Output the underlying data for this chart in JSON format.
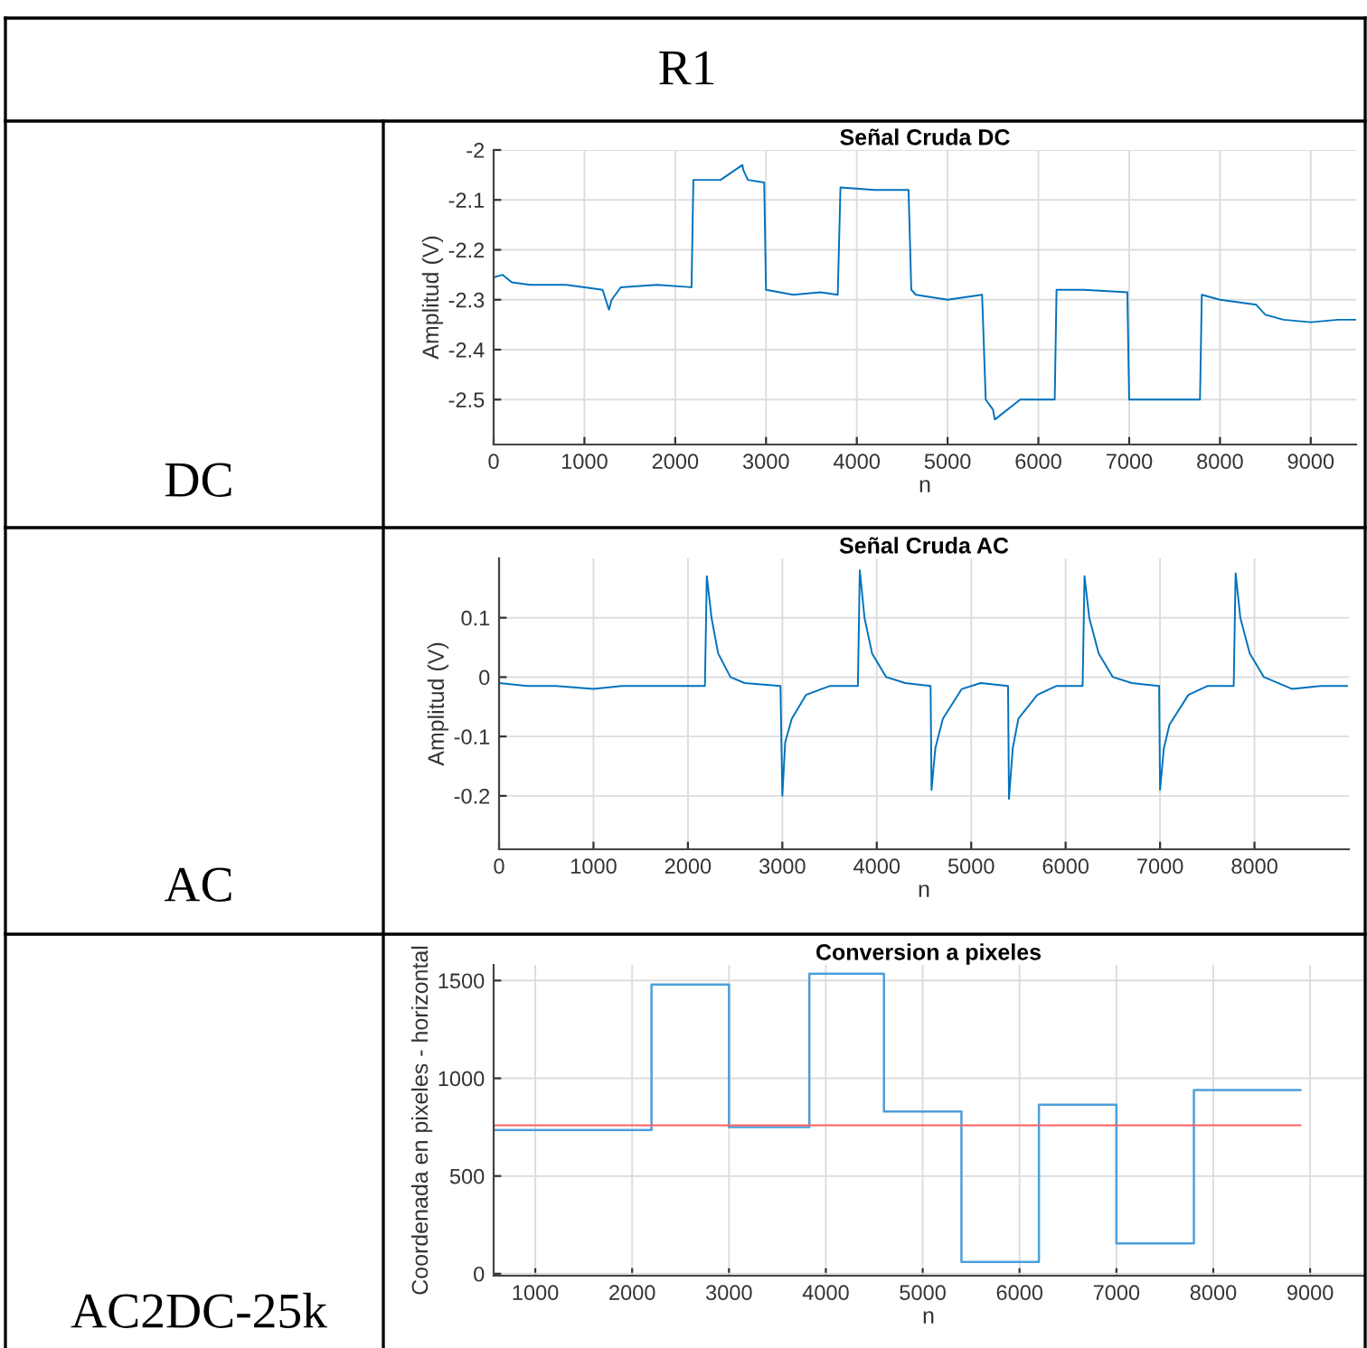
{
  "chart_data": [
    {
      "type": "other",
      "title": "R1",
      "annotations": [
        "DC",
        "AC",
        "AC2DC-25k"
      ]
    },
    {
      "type": "line",
      "title": "Señal Cruda DC",
      "xlabel": "n",
      "ylabel": "Amplitud (V)",
      "grid": true,
      "xlim": [
        0,
        9500
      ],
      "xticks": [
        0,
        1000,
        2000,
        3000,
        4000,
        5000,
        6000,
        7000,
        8000,
        9000
      ],
      "ylim": [
        -2.59,
        -2
      ],
      "yticks": [
        -2.5,
        -2.4,
        -2.3,
        -2.2,
        -2.1,
        -2
      ],
      "series": [
        {
          "type": "line",
          "color": "#0072bd",
          "x": [
            0,
            100,
            200,
            400,
            800,
            1200,
            1270,
            1300,
            1400,
            1800,
            2180,
            2200,
            2500,
            2740,
            2750,
            2800,
            2980,
            3000,
            3300,
            3600,
            3790,
            3820,
            4200,
            4570,
            4600,
            4650,
            5000,
            5380,
            5420,
            5500,
            5520,
            5800,
            6180,
            6200,
            6500,
            6980,
            7000,
            7400,
            7780,
            7800,
            8000,
            8400,
            8500,
            8700,
            9000,
            9300,
            9500
          ],
          "values": [
            -2.255,
            -2.25,
            -2.265,
            -2.27,
            -2.27,
            -2.28,
            -2.32,
            -2.3,
            -2.275,
            -2.27,
            -2.275,
            -2.06,
            -2.06,
            -2.03,
            -2.04,
            -2.06,
            -2.065,
            -2.28,
            -2.29,
            -2.285,
            -2.29,
            -2.075,
            -2.08,
            -2.08,
            -2.28,
            -2.29,
            -2.3,
            -2.29,
            -2.5,
            -2.52,
            -2.54,
            -2.5,
            -2.5,
            -2.28,
            -2.28,
            -2.285,
            -2.5,
            -2.5,
            -2.5,
            -2.29,
            -2.3,
            -2.31,
            -2.33,
            -2.34,
            -2.345,
            -2.34,
            -2.34
          ]
        }
      ]
    },
    {
      "type": "line",
      "title": "Señal Cruda AC",
      "xlabel": "n",
      "ylabel": "Amplitud (V)",
      "grid": true,
      "xlim": [
        0,
        9000
      ],
      "xticks": [
        0,
        1000,
        2000,
        3000,
        4000,
        5000,
        6000,
        7000,
        8000
      ],
      "ylim": [
        -0.29,
        0.2
      ],
      "yticks": [
        -0.2,
        -0.1,
        0,
        0.1
      ],
      "series": [
        {
          "type": "line",
          "color": "#0072bd",
          "x": [
            0,
            300,
            600,
            1000,
            1300,
            1800,
            2180,
            2200,
            2250,
            2320,
            2450,
            2600,
            2980,
            3000,
            3030,
            3100,
            3250,
            3500,
            3800,
            3820,
            3870,
            3950,
            4100,
            4300,
            4570,
            4580,
            4620,
            4700,
            4900,
            5100,
            5390,
            5400,
            5440,
            5500,
            5700,
            5900,
            6180,
            6200,
            6250,
            6350,
            6500,
            6700,
            6990,
            7000,
            7040,
            7100,
            7300,
            7500,
            7780,
            7800,
            7850,
            7950,
            8100,
            8400,
            8700,
            8980
          ],
          "values": [
            -0.01,
            -0.015,
            -0.015,
            -0.02,
            -0.015,
            -0.015,
            -0.015,
            0.17,
            0.1,
            0.04,
            0.0,
            -0.01,
            -0.015,
            -0.2,
            -0.11,
            -0.07,
            -0.03,
            -0.015,
            -0.015,
            0.18,
            0.1,
            0.04,
            0.0,
            -0.01,
            -0.015,
            -0.19,
            -0.12,
            -0.07,
            -0.02,
            -0.01,
            -0.015,
            -0.205,
            -0.12,
            -0.07,
            -0.03,
            -0.015,
            -0.015,
            0.17,
            0.1,
            0.04,
            0.0,
            -0.01,
            -0.015,
            -0.19,
            -0.12,
            -0.08,
            -0.03,
            -0.015,
            -0.015,
            0.175,
            0.1,
            0.04,
            0.0,
            -0.02,
            -0.015,
            -0.015
          ]
        }
      ]
    },
    {
      "type": "step",
      "title": "Conversion a pixeles",
      "xlabel": "n",
      "ylabel": "Coordenada en pixeles - horizontal",
      "grid": true,
      "xlim": [
        570,
        9550
      ],
      "xticks": [
        1000,
        2000,
        3000,
        4000,
        5000,
        6000,
        7000,
        8000,
        9000
      ],
      "ylim": [
        -10,
        1580
      ],
      "yticks": [
        0,
        500,
        1000,
        1500
      ],
      "series": [
        {
          "type": "step",
          "color": "#4d9fdb",
          "x": [
            570,
            2200,
            3000,
            3830,
            4600,
            5400,
            6200,
            7000,
            7800,
            8900
          ],
          "values": [
            735,
            1480,
            750,
            1535,
            830,
            60,
            865,
            155,
            940,
            940
          ]
        },
        {
          "type": "line",
          "color": "#ff6060",
          "x": [
            570,
            8900
          ],
          "values": [
            760,
            760
          ]
        }
      ]
    }
  ]
}
